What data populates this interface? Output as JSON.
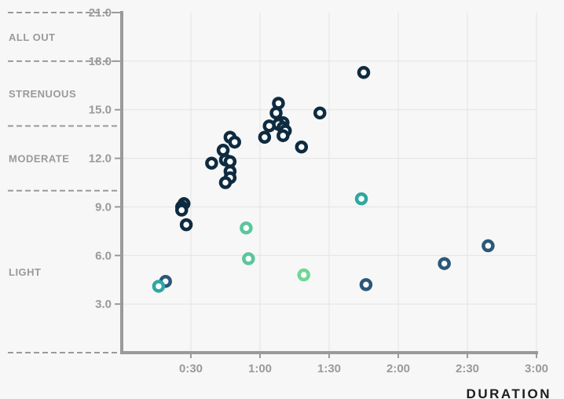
{
  "chart_data": {
    "type": "scatter",
    "xlabel": "DURATION",
    "ylabel": "",
    "xlim": [
      0,
      180
    ],
    "ylim": [
      0,
      21
    ],
    "x_ticks": [
      {
        "value": 30,
        "label": "0:30"
      },
      {
        "value": 60,
        "label": "1:00"
      },
      {
        "value": 90,
        "label": "1:30"
      },
      {
        "value": 120,
        "label": "2:00"
      },
      {
        "value": 150,
        "label": "2:30"
      },
      {
        "value": 180,
        "label": "3:00"
      }
    ],
    "y_ticks": [
      {
        "value": 3,
        "label": "3.0"
      },
      {
        "value": 6,
        "label": "6.0"
      },
      {
        "value": 9,
        "label": "9.0"
      },
      {
        "value": 12,
        "label": "12.0"
      },
      {
        "value": 15,
        "label": "15.0"
      },
      {
        "value": 18,
        "label": "18.0"
      },
      {
        "value": 21,
        "label": "21.0"
      }
    ],
    "grid": true,
    "zones": [
      {
        "label": "ALL OUT",
        "from": 18,
        "to": 21
      },
      {
        "label": "STRENUOUS",
        "from": 14,
        "to": 18
      },
      {
        "label": "MODERATE",
        "from": 10,
        "to": 14
      },
      {
        "label": "LIGHT",
        "from": 0,
        "to": 10
      }
    ],
    "colors": {
      "navy": "#0e2b40",
      "slate": "#2a5878",
      "teal": "#2fa7a1",
      "green": "#5ac79b",
      "lightgreen": "#6fd793"
    },
    "points": [
      {
        "x": 105,
        "y": 17.3,
        "color": "navy"
      },
      {
        "x": 68,
        "y": 15.4,
        "color": "navy"
      },
      {
        "x": 67,
        "y": 14.8,
        "color": "navy"
      },
      {
        "x": 86,
        "y": 14.8,
        "color": "navy"
      },
      {
        "x": 70,
        "y": 14.2,
        "color": "navy"
      },
      {
        "x": 68,
        "y": 14.1,
        "color": "navy"
      },
      {
        "x": 64,
        "y": 14.0,
        "color": "navy"
      },
      {
        "x": 70,
        "y": 13.9,
        "color": "navy"
      },
      {
        "x": 71,
        "y": 13.7,
        "color": "navy"
      },
      {
        "x": 70,
        "y": 13.4,
        "color": "navy"
      },
      {
        "x": 62,
        "y": 13.3,
        "color": "navy"
      },
      {
        "x": 47,
        "y": 13.3,
        "color": "navy"
      },
      {
        "x": 49,
        "y": 13.0,
        "color": "navy"
      },
      {
        "x": 78,
        "y": 12.7,
        "color": "navy"
      },
      {
        "x": 44,
        "y": 12.5,
        "color": "navy"
      },
      {
        "x": 45,
        "y": 11.9,
        "color": "navy"
      },
      {
        "x": 47,
        "y": 11.8,
        "color": "navy"
      },
      {
        "x": 39,
        "y": 11.7,
        "color": "navy"
      },
      {
        "x": 47,
        "y": 11.2,
        "color": "navy"
      },
      {
        "x": 47,
        "y": 10.8,
        "color": "navy"
      },
      {
        "x": 45,
        "y": 10.5,
        "color": "navy"
      },
      {
        "x": 27,
        "y": 9.2,
        "color": "navy"
      },
      {
        "x": 26,
        "y": 9.0,
        "color": "navy"
      },
      {
        "x": 26,
        "y": 8.8,
        "color": "navy"
      },
      {
        "x": 28,
        "y": 7.9,
        "color": "navy"
      },
      {
        "x": 104,
        "y": 9.5,
        "color": "teal"
      },
      {
        "x": 54,
        "y": 7.7,
        "color": "green"
      },
      {
        "x": 55,
        "y": 5.8,
        "color": "green"
      },
      {
        "x": 79,
        "y": 4.8,
        "color": "lightgreen"
      },
      {
        "x": 106,
        "y": 4.2,
        "color": "slate"
      },
      {
        "x": 140,
        "y": 5.5,
        "color": "slate"
      },
      {
        "x": 159,
        "y": 6.6,
        "color": "slate"
      },
      {
        "x": 19,
        "y": 4.4,
        "color": "slate"
      },
      {
        "x": 16,
        "y": 4.1,
        "color": "teal"
      }
    ]
  }
}
